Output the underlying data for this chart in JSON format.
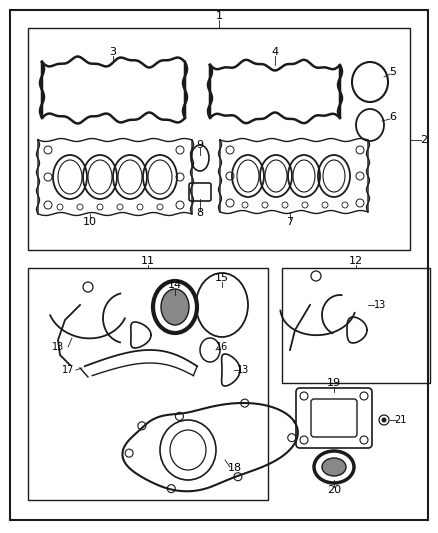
{
  "bg_color": "#ffffff",
  "label_color": "#000000",
  "fig_width": 4.38,
  "fig_height": 5.33,
  "dpi": 100
}
